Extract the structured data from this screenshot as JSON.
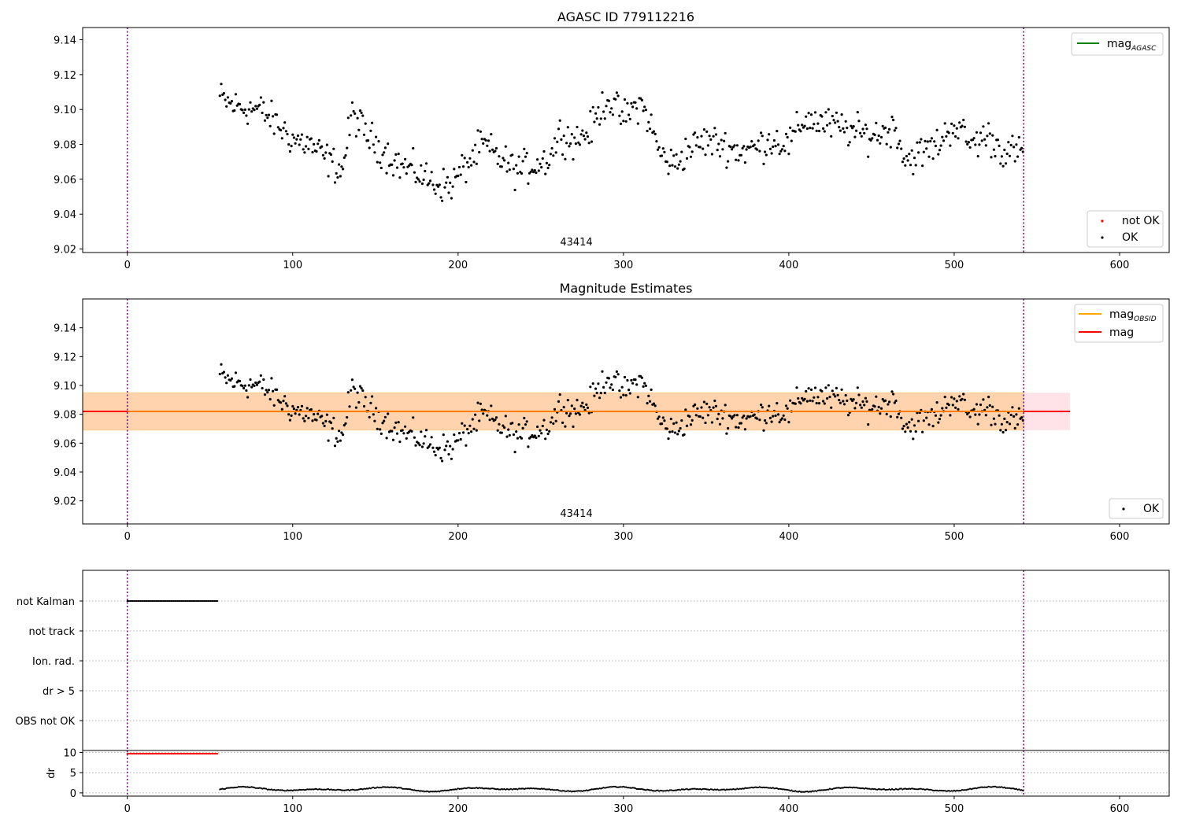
{
  "chart_data": [
    {
      "type": "scatter",
      "title": "AGASC ID 779112216",
      "xlim": [
        -27,
        630
      ],
      "ylim": [
        9.018,
        9.147
      ],
      "x_ticks": [
        "0",
        "100",
        "200",
        "300",
        "400",
        "500",
        "600"
      ],
      "y_ticks": [
        "9.02",
        "9.04",
        "9.06",
        "9.08",
        "9.10",
        "9.12",
        "9.14"
      ],
      "vlines": [
        0,
        542
      ],
      "annotation": {
        "text": "43414",
        "x": 271,
        "y": 9.021
      },
      "legend_top": [
        {
          "label": "mag",
          "sub": "AGASC",
          "color": "#008000",
          "kind": "line"
        }
      ],
      "legend_bottom": [
        {
          "label": "not OK",
          "color": "#ff0000",
          "kind": "point"
        },
        {
          "label": "OK",
          "color": "#000000",
          "kind": "point"
        }
      ],
      "series": {
        "name": "OK",
        "x_start": 56,
        "x_end": 542,
        "control_x": [
          56,
          62,
          70,
          80,
          90,
          100,
          110,
          120,
          130,
          136,
          145,
          155,
          165,
          175,
          185,
          195,
          205,
          215,
          225,
          235,
          245,
          255,
          262,
          270,
          280,
          290,
          300,
          310,
          315,
          322,
          330,
          340,
          350,
          360,
          370,
          380,
          390,
          400,
          410,
          420,
          430,
          440,
          450,
          460,
          465,
          470,
          480,
          490,
          500,
          510,
          520,
          530,
          542
        ],
        "control_y": [
          9.107,
          9.103,
          9.101,
          9.1,
          9.092,
          9.083,
          9.08,
          9.072,
          9.065,
          9.098,
          9.085,
          9.076,
          9.068,
          9.064,
          9.058,
          9.056,
          9.068,
          9.08,
          9.072,
          9.065,
          9.068,
          9.072,
          9.087,
          9.082,
          9.088,
          9.107,
          9.095,
          9.104,
          9.095,
          9.075,
          9.068,
          9.078,
          9.082,
          9.08,
          9.076,
          9.078,
          9.083,
          9.08,
          9.095,
          9.092,
          9.09,
          9.087,
          9.085,
          9.088,
          9.09,
          9.071,
          9.075,
          9.08,
          9.092,
          9.08,
          9.085,
          9.076,
          9.075
        ],
        "noise": 0.006
      }
    },
    {
      "type": "scatter",
      "title": "Magnitude Estimates",
      "xlim": [
        -27,
        630
      ],
      "ylim": [
        9.004,
        9.16
      ],
      "x_ticks": [
        "0",
        "100",
        "200",
        "300",
        "400",
        "500",
        "600"
      ],
      "y_ticks": [
        "9.02",
        "9.04",
        "9.06",
        "9.08",
        "9.10",
        "9.12",
        "9.14"
      ],
      "vlines": [
        0,
        542
      ],
      "annotation": {
        "text": "43414",
        "x": 271,
        "y": 9.007
      },
      "legend_top": [
        {
          "label": "mag",
          "sub": "OBSID",
          "color": "#ffa500",
          "kind": "line"
        },
        {
          "label": "mag",
          "sub": "",
          "color": "#ff0000",
          "kind": "line"
        }
      ],
      "legend_bottom": [
        {
          "label": "OK",
          "color": "#000000",
          "kind": "point"
        }
      ],
      "mag_line": {
        "y": 9.082,
        "x": [
          -27,
          570
        ]
      },
      "band_obsid": {
        "y": [
          9.069,
          9.095
        ],
        "x": [
          -27,
          542
        ]
      },
      "band_total": {
        "y": [
          9.069,
          9.095
        ],
        "x": [
          -27,
          570
        ]
      },
      "series_ref": 0
    },
    {
      "type": "scatter",
      "xlim": [
        -27,
        630
      ],
      "categories": [
        "not Kalman",
        "not track",
        "Ion. rad.",
        "dr > 5",
        "OBS not OK"
      ],
      "flag_points": {
        "category": "not Kalman",
        "x_range": [
          0,
          55
        ]
      },
      "vlines": [
        0,
        542
      ]
    },
    {
      "type": "scatter",
      "ylabel": "dr",
      "xlim": [
        -27,
        630
      ],
      "ylim": [
        -0.8,
        10.5
      ],
      "x_ticks": [
        "0",
        "100",
        "200",
        "300",
        "400",
        "500",
        "600"
      ],
      "y_ticks": [
        "0",
        "5",
        "10"
      ],
      "vlines": [
        0,
        542
      ],
      "notok_points": {
        "x_range": [
          0,
          55
        ],
        "y": 9.7,
        "color": "#ff0000"
      },
      "ok_points": {
        "x_range": [
          56,
          542
        ],
        "baseline": 0.9,
        "amplitude": 0.6
      }
    }
  ]
}
